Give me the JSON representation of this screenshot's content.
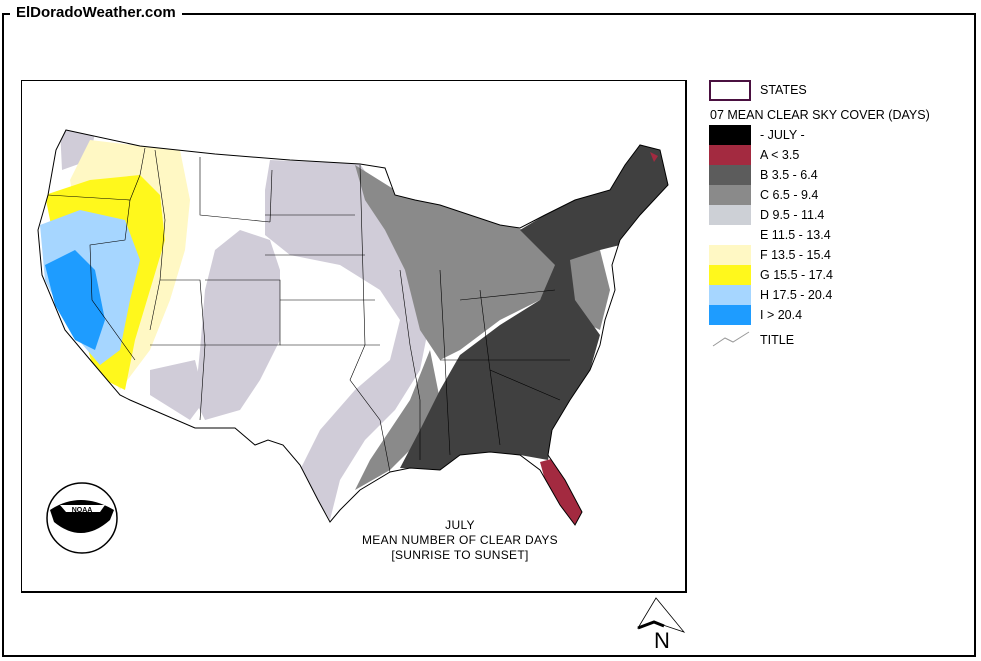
{
  "header": {
    "site_title": "ElDoradoWeather.com"
  },
  "map": {
    "title_lines": [
      "JULY",
      "MEAN NUMBER OF CLEAR DAYS",
      "[SUNRISE TO SUNSET]"
    ],
    "logo": "NOAA",
    "north_label": "N"
  },
  "legend": {
    "states_label": "STATES",
    "states_color": "#4a1040",
    "heading": "07 MEAN CLEAR SKY COVER (DAYS)",
    "items": [
      {
        "label": "- JULY -",
        "color": "#000000"
      },
      {
        "label": "A < 3.5",
        "color": "#a32a40"
      },
      {
        "label": "B 3.5 - 6.4",
        "color": "#5c5c5c"
      },
      {
        "label": "C 6.5 - 9.4",
        "color": "#8a8a8a"
      },
      {
        "label": "D 9.5 - 11.4",
        "color": "#cdd0d6"
      },
      {
        "label": "E 11.5 - 13.4",
        "color": "#ffffff"
      },
      {
        "label": "F 13.5 - 15.4",
        "color": "#fff8c4"
      },
      {
        "label": "G 15.5 - 17.4",
        "color": "#fff81c"
      },
      {
        "label": "H 17.5 - 20.4",
        "color": "#a6d6ff"
      },
      {
        "label": "I > 20.4",
        "color": "#1e9cff"
      }
    ],
    "title_label": "TITLE"
  }
}
